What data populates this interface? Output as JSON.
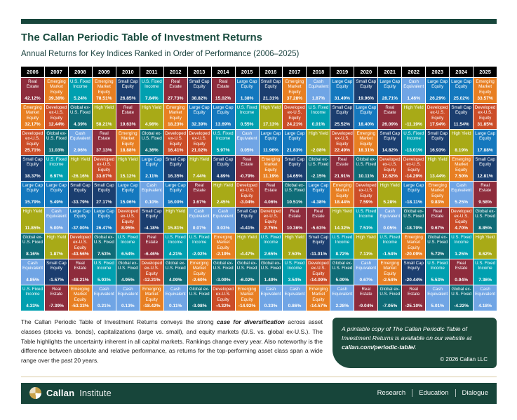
{
  "page": {
    "title": "The Callan Periodic Table of Investment Returns",
    "subtitle": "Annual Returns for Key Indices Ranked in Order of Performance (2006–2025)"
  },
  "chart_data": {
    "type": "table",
    "title": "The Callan Periodic Table of Investment Returns",
    "subtitle": "Annual Returns for Key Indices Ranked in Order of Performance (2006–2025)",
    "assets": {
      "lc": {
        "label": "Large Cap Equity",
        "color": "#1478BE"
      },
      "sc": {
        "label": "Small Cap Equity",
        "color": "#1B3E6F"
      },
      "dev": {
        "label": "Developed ex-U.S. Equity",
        "color": "#CC4D28"
      },
      "em": {
        "label": "Emerging Market Equity",
        "color": "#E87F22"
      },
      "usf": {
        "label": "U.S. Fixed Income",
        "color": "#00A0B0"
      },
      "gf": {
        "label": "Global ex-U.S. Fixed",
        "color": "#0F6C77"
      },
      "hy": {
        "label": "High Yield",
        "color": "#A8AA17"
      },
      "re": {
        "label": "Real Estate",
        "color": "#8E2C3C"
      },
      "cash": {
        "label": "Cash Equivalent",
        "color": "#70A5E5"
      }
    },
    "years": [
      {
        "year": "2006",
        "cells": [
          [
            "re",
            "42.12%"
          ],
          [
            "em",
            "32.17%"
          ],
          [
            "dev",
            "25.71%"
          ],
          [
            "sc",
            "18.37%"
          ],
          [
            "lc",
            "15.79%"
          ],
          [
            "hy",
            "11.85%"
          ],
          [
            "gf",
            "8.16%"
          ],
          [
            "cash",
            "4.85%"
          ],
          [
            "usf",
            "4.33%"
          ]
        ]
      },
      {
        "year": "2007",
        "cells": [
          [
            "em",
            "39.38%"
          ],
          [
            "dev",
            "12.44%"
          ],
          [
            "gf",
            "11.03%"
          ],
          [
            "usf",
            "6.97%"
          ],
          [
            "lc",
            "5.49%"
          ],
          [
            "cash",
            "5.00%"
          ],
          [
            "hy",
            "1.87%"
          ],
          [
            "sc",
            "-1.57%"
          ],
          [
            "re",
            "-7.39%"
          ]
        ]
      },
      {
        "year": "2008",
        "cells": [
          [
            "usf",
            "5.24%"
          ],
          [
            "gf",
            "4.39%"
          ],
          [
            "cash",
            "2.06%"
          ],
          [
            "hy",
            "-26.16%"
          ],
          [
            "sc",
            "-33.79%"
          ],
          [
            "lc",
            "-37.00%"
          ],
          [
            "dev",
            "-43.56%"
          ],
          [
            "re",
            "-48.21%"
          ],
          [
            "em",
            "-53.33%"
          ]
        ]
      },
      {
        "year": "2009",
        "cells": [
          [
            "em",
            "78.51%"
          ],
          [
            "hy",
            "58.21%"
          ],
          [
            "re",
            "37.13%"
          ],
          [
            "dev",
            "33.67%"
          ],
          [
            "sc",
            "27.17%"
          ],
          [
            "lc",
            "26.47%"
          ],
          [
            "gf",
            "7.53%"
          ],
          [
            "usf",
            "5.93%"
          ],
          [
            "cash",
            "0.21%"
          ]
        ]
      },
      {
        "year": "2010",
        "cells": [
          [
            "sc",
            "26.85%"
          ],
          [
            "re",
            "19.63%"
          ],
          [
            "em",
            "18.88%"
          ],
          [
            "hy",
            "15.12%"
          ],
          [
            "lc",
            "15.06%"
          ],
          [
            "dev",
            "8.95%"
          ],
          [
            "usf",
            "6.54%"
          ],
          [
            "gf",
            "4.95%"
          ],
          [
            "cash",
            "0.13%"
          ]
        ]
      },
      {
        "year": "2011",
        "cells": [
          [
            "usf",
            "7.84%"
          ],
          [
            "hy",
            "4.98%"
          ],
          [
            "gf",
            "4.36%"
          ],
          [
            "lc",
            "2.11%"
          ],
          [
            "cash",
            "0.10%"
          ],
          [
            "sc",
            "-4.18%"
          ],
          [
            "re",
            "-6.46%"
          ],
          [
            "dev",
            "-12.21%"
          ],
          [
            "em",
            "-18.42%"
          ]
        ]
      },
      {
        "year": "2012",
        "cells": [
          [
            "re",
            "27.73%"
          ],
          [
            "em",
            "18.23%"
          ],
          [
            "dev",
            "16.41%"
          ],
          [
            "sc",
            "16.35%"
          ],
          [
            "lc",
            "16.00%"
          ],
          [
            "hy",
            "15.81%"
          ],
          [
            "usf",
            "4.21%"
          ],
          [
            "gf",
            "4.09%"
          ],
          [
            "cash",
            "0.11%"
          ]
        ]
      },
      {
        "year": "2013",
        "cells": [
          [
            "sc",
            "38.82%"
          ],
          [
            "lc",
            "32.39%"
          ],
          [
            "dev",
            "21.02%"
          ],
          [
            "hy",
            "7.44%"
          ],
          [
            "re",
            "3.67%"
          ],
          [
            "cash",
            "0.07%"
          ],
          [
            "usf",
            "-2.02%"
          ],
          [
            "em",
            "-2.60%"
          ],
          [
            "gf",
            "-3.08%"
          ]
        ]
      },
      {
        "year": "2014",
        "cells": [
          [
            "re",
            "15.02%"
          ],
          [
            "lc",
            "13.69%"
          ],
          [
            "usf",
            "5.97%"
          ],
          [
            "sc",
            "4.89%"
          ],
          [
            "hy",
            "2.45%"
          ],
          [
            "cash",
            "0.03%"
          ],
          [
            "em",
            "-2.19%"
          ],
          [
            "gf",
            "-3.09%"
          ],
          [
            "dev",
            "-4.32%"
          ]
        ]
      },
      {
        "year": "2015",
        "cells": [
          [
            "lc",
            "1.38%"
          ],
          [
            "usf",
            "0.55%"
          ],
          [
            "cash",
            "0.05%"
          ],
          [
            "re",
            "-0.79%"
          ],
          [
            "dev",
            "-3.04%"
          ],
          [
            "sc",
            "-4.41%"
          ],
          [
            "hy",
            "-4.47%"
          ],
          [
            "gf",
            "-6.02%"
          ],
          [
            "em",
            "-14.92%"
          ]
        ]
      },
      {
        "year": "2016",
        "cells": [
          [
            "sc",
            "21.31%"
          ],
          [
            "hy",
            "17.13%"
          ],
          [
            "lc",
            "11.96%"
          ],
          [
            "em",
            "11.19%"
          ],
          [
            "re",
            "4.06%"
          ],
          [
            "dev",
            "2.75%"
          ],
          [
            "usf",
            "2.65%"
          ],
          [
            "gf",
            "1.49%"
          ],
          [
            "cash",
            "0.33%"
          ]
        ]
      },
      {
        "year": "2017",
        "cells": [
          [
            "em",
            "37.28%"
          ],
          [
            "dev",
            "24.21%"
          ],
          [
            "lc",
            "21.83%"
          ],
          [
            "sc",
            "14.65%"
          ],
          [
            "gf",
            "10.51%"
          ],
          [
            "re",
            "10.36%"
          ],
          [
            "hy",
            "7.50%"
          ],
          [
            "usf",
            "3.54%"
          ],
          [
            "cash",
            "0.86%"
          ]
        ]
      },
      {
        "year": "2018",
        "cells": [
          [
            "cash",
            "1.87%"
          ],
          [
            "usf",
            "0.01%"
          ],
          [
            "hy",
            "-2.08%"
          ],
          [
            "gf",
            "-2.15%"
          ],
          [
            "lc",
            "-4.38%"
          ],
          [
            "re",
            "-5.63%"
          ],
          [
            "sc",
            "-11.01%"
          ],
          [
            "dev",
            "-14.09%"
          ],
          [
            "em",
            "-14.57%"
          ]
        ]
      },
      {
        "year": "2019",
        "cells": [
          [
            "lc",
            "31.49%"
          ],
          [
            "sc",
            "25.52%"
          ],
          [
            "dev",
            "22.49%"
          ],
          [
            "re",
            "21.91%"
          ],
          [
            "em",
            "18.44%"
          ],
          [
            "hy",
            "14.32%"
          ],
          [
            "usf",
            "8.72%"
          ],
          [
            "gf",
            "5.09%"
          ],
          [
            "cash",
            "2.28%"
          ]
        ]
      },
      {
        "year": "2020",
        "cells": [
          [
            "sc",
            "19.96%"
          ],
          [
            "lc",
            "18.40%"
          ],
          [
            "em",
            "18.31%"
          ],
          [
            "gf",
            "10.11%"
          ],
          [
            "dev",
            "7.59%"
          ],
          [
            "usf",
            "7.51%"
          ],
          [
            "hy",
            "7.11%"
          ],
          [
            "cash",
            "0.67%"
          ],
          [
            "re",
            "-9.04%"
          ]
        ]
      },
      {
        "year": "2021",
        "cells": [
          [
            "lc",
            "28.71%"
          ],
          [
            "re",
            "26.09%"
          ],
          [
            "sc",
            "14.82%"
          ],
          [
            "dev",
            "12.62%"
          ],
          [
            "hy",
            "5.28%"
          ],
          [
            "cash",
            "0.05%"
          ],
          [
            "usf",
            "-1.54%"
          ],
          [
            "em",
            "-2.54%"
          ],
          [
            "gf",
            "-7.05%"
          ]
        ]
      },
      {
        "year": "2022",
        "cells": [
          [
            "cash",
            "1.46%"
          ],
          [
            "hy",
            "-11.19%"
          ],
          [
            "usf",
            "-13.01%"
          ],
          [
            "dev",
            "-14.29%"
          ],
          [
            "lc",
            "-18.11%"
          ],
          [
            "gf",
            "-18.70%"
          ],
          [
            "em",
            "-20.09%"
          ],
          [
            "sc",
            "-20.44%"
          ],
          [
            "re",
            "-25.10%"
          ]
        ]
      },
      {
        "year": "2023",
        "cells": [
          [
            "lc",
            "26.29%"
          ],
          [
            "dev",
            "17.94%"
          ],
          [
            "sc",
            "16.93%"
          ],
          [
            "hy",
            "13.44%"
          ],
          [
            "em",
            "9.83%"
          ],
          [
            "re",
            "9.67%"
          ],
          [
            "gf",
            "5.72%"
          ],
          [
            "usf",
            "5.53%"
          ],
          [
            "cash",
            "5.01%"
          ]
        ]
      },
      {
        "year": "2024",
        "cells": [
          [
            "lc",
            "25.02%"
          ],
          [
            "sc",
            "11.54%"
          ],
          [
            "hy",
            "8.19%"
          ],
          [
            "em",
            "7.50%"
          ],
          [
            "cash",
            "5.25%"
          ],
          [
            "dev",
            "4.70%"
          ],
          [
            "usf",
            "1.25%"
          ],
          [
            "re",
            "0.94%"
          ],
          [
            "gf",
            "-4.22%"
          ]
        ]
      },
      {
        "year": "2025",
        "cells": [
          [
            "em",
            "33.57%"
          ],
          [
            "dev",
            "31.85%"
          ],
          [
            "lc",
            "17.88%"
          ],
          [
            "sc",
            "12.81%"
          ],
          [
            "re",
            "9.58%"
          ],
          [
            "gf",
            "8.85%"
          ],
          [
            "hy",
            "8.62%"
          ],
          [
            "usf",
            "7.36%"
          ],
          [
            "cash",
            "4.18%"
          ]
        ]
      }
    ]
  },
  "footer": {
    "para_before": "The Callan Periodic Table of Investment Returns conveys the strong ",
    "para_em": "case for diversification",
    "para_after": " across asset classes (stocks vs. bonds), capitalizations (large vs. small), and equity markets (U.S. vs. global ex-U.S.). The Table highlights the uncertainty inherent in all capital markets. Rankings change every year. Also noteworthy is the difference between absolute and relative performance, as returns for the top-performing asset class span a wide range over the past 20 years."
  },
  "notice": {
    "text_before": "A printable copy of The Callan Periodic Table of Investment Returns is available on our website at ",
    "link": "callan.com/periodic-table/",
    "text_after": ".",
    "copyright": "© 2026 Callan LLC"
  },
  "bottombar": {
    "brand_bold": "Callan",
    "brand_light": "Institute",
    "items": [
      "Research",
      "Education",
      "Dialogue"
    ]
  }
}
